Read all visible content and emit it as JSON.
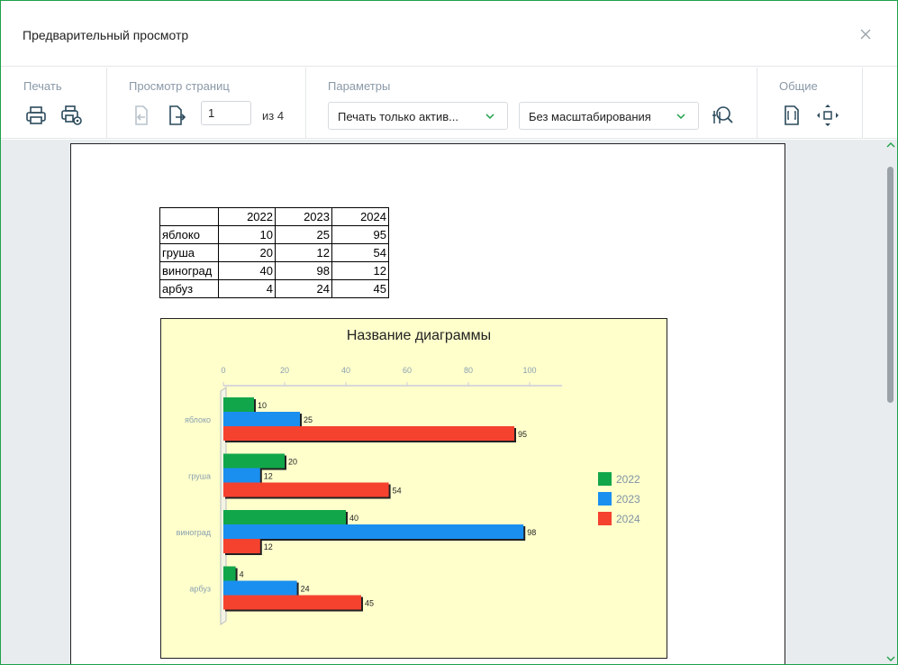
{
  "window": {
    "title": "Предварительный просмотр"
  },
  "ribbon": {
    "print_group": {
      "label": "Печать"
    },
    "pages_group": {
      "label": "Просмотр страниц",
      "page_value": "1",
      "of_text": "из 4"
    },
    "params_group": {
      "label": "Параметры",
      "print_scope": "Печать только актив...",
      "scaling": "Без масштабирования"
    },
    "general_group": {
      "label": "Общие"
    }
  },
  "table": {
    "header": [
      "",
      "2022",
      "2023",
      "2024"
    ],
    "rows": [
      [
        "яблоко",
        "10",
        "25",
        "95"
      ],
      [
        "груша",
        "20",
        "12",
        "54"
      ],
      [
        "виноград",
        "40",
        "98",
        "12"
      ],
      [
        "арбуз",
        "4",
        "24",
        "45"
      ]
    ]
  },
  "chart_data": {
    "type": "bar",
    "orientation": "horizontal",
    "title": "Название диаграммы",
    "categories": [
      "яблоко",
      "груша",
      "виноград",
      "арбуз"
    ],
    "series": [
      {
        "name": "2022",
        "values": [
          10,
          20,
          40,
          4
        ],
        "color": "#12a64a"
      },
      {
        "name": "2023",
        "values": [
          25,
          12,
          98,
          24
        ],
        "color": "#1a8ff0"
      },
      {
        "name": "2024",
        "values": [
          95,
          54,
          12,
          45
        ],
        "color": "#f5422f"
      }
    ],
    "xlim": [
      0,
      110
    ],
    "ticks": [
      0,
      20,
      40,
      60,
      80,
      100
    ],
    "legend_position": "right",
    "background": "#ffffcc"
  }
}
